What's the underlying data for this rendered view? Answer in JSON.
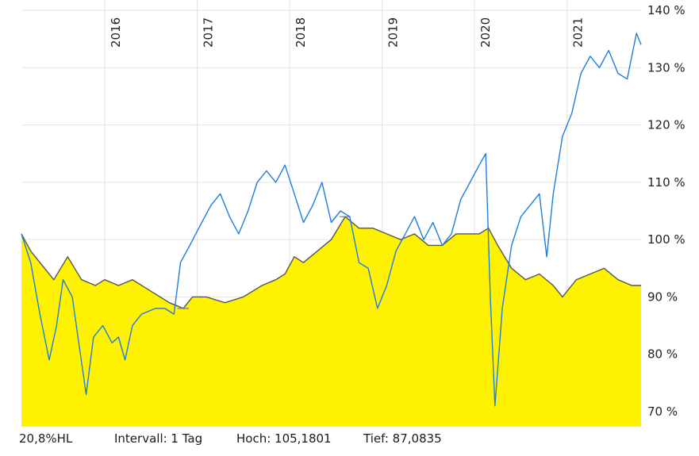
{
  "chart_data": {
    "type": "area",
    "x_ticks": [
      "2016",
      "2017",
      "2018",
      "2019",
      "2020",
      "2021"
    ],
    "y_ticks": [
      "70 %",
      "80 %",
      "90 %",
      "100 %",
      "110 %",
      "120 %",
      "130 %",
      "140 %"
    ],
    "ylim": [
      68,
      140
    ],
    "xlim": [
      2015.1,
      2021.8
    ],
    "grid": true,
    "series": [
      {
        "style": "area",
        "fill": "#fff200",
        "stroke": "#555555",
        "points": [
          [
            2015.1,
            101
          ],
          [
            2015.2,
            98
          ],
          [
            2015.3,
            96
          ],
          [
            2015.45,
            93
          ],
          [
            2015.6,
            97
          ],
          [
            2015.75,
            93
          ],
          [
            2015.9,
            92
          ],
          [
            2016.0,
            93
          ],
          [
            2016.15,
            92
          ],
          [
            2016.3,
            93
          ],
          [
            2016.5,
            91
          ],
          [
            2016.7,
            89
          ],
          [
            2016.85,
            88
          ],
          [
            2016.95,
            90
          ],
          [
            2017.1,
            90
          ],
          [
            2017.3,
            89
          ],
          [
            2017.5,
            90
          ],
          [
            2017.7,
            92
          ],
          [
            2017.85,
            93
          ],
          [
            2017.95,
            94
          ],
          [
            2018.05,
            97
          ],
          [
            2018.15,
            96
          ],
          [
            2018.3,
            98
          ],
          [
            2018.45,
            100
          ],
          [
            2018.6,
            104
          ],
          [
            2018.75,
            102
          ],
          [
            2018.9,
            102
          ],
          [
            2019.05,
            101
          ],
          [
            2019.2,
            100
          ],
          [
            2019.35,
            101
          ],
          [
            2019.5,
            99
          ],
          [
            2019.65,
            99
          ],
          [
            2019.8,
            101
          ],
          [
            2019.95,
            101
          ],
          [
            2020.05,
            101
          ],
          [
            2020.15,
            102
          ],
          [
            2020.25,
            99
          ],
          [
            2020.4,
            95
          ],
          [
            2020.55,
            93
          ],
          [
            2020.7,
            94
          ],
          [
            2020.85,
            92
          ],
          [
            2020.95,
            90
          ],
          [
            2021.1,
            93
          ],
          [
            2021.25,
            94
          ],
          [
            2021.4,
            95
          ],
          [
            2021.55,
            93
          ],
          [
            2021.7,
            92
          ],
          [
            2021.8,
            92
          ]
        ]
      },
      {
        "style": "line",
        "stroke": "#1f7de0",
        "points": [
          [
            2015.1,
            101
          ],
          [
            2015.2,
            96
          ],
          [
            2015.3,
            87
          ],
          [
            2015.4,
            79
          ],
          [
            2015.48,
            85
          ],
          [
            2015.55,
            93
          ],
          [
            2015.65,
            90
          ],
          [
            2015.72,
            82
          ],
          [
            2015.8,
            73
          ],
          [
            2015.88,
            83
          ],
          [
            2015.98,
            85
          ],
          [
            2016.08,
            82
          ],
          [
            2016.15,
            83
          ],
          [
            2016.22,
            79
          ],
          [
            2016.3,
            85
          ],
          [
            2016.4,
            87
          ],
          [
            2016.55,
            88
          ],
          [
            2016.65,
            88
          ],
          [
            2016.75,
            87
          ],
          [
            2016.82,
            96
          ],
          [
            2016.92,
            99
          ],
          [
            2017.05,
            103
          ],
          [
            2017.15,
            106
          ],
          [
            2017.25,
            108
          ],
          [
            2017.35,
            104
          ],
          [
            2017.45,
            101
          ],
          [
            2017.55,
            105
          ],
          [
            2017.65,
            110
          ],
          [
            2017.75,
            112
          ],
          [
            2017.85,
            110
          ],
          [
            2017.95,
            113
          ],
          [
            2018.05,
            108
          ],
          [
            2018.15,
            103
          ],
          [
            2018.25,
            106
          ],
          [
            2018.35,
            110
          ],
          [
            2018.45,
            103
          ],
          [
            2018.55,
            105
          ],
          [
            2018.65,
            104
          ],
          [
            2018.75,
            96
          ],
          [
            2018.85,
            95
          ],
          [
            2018.95,
            88
          ],
          [
            2019.05,
            92
          ],
          [
            2019.15,
            98
          ],
          [
            2019.25,
            101
          ],
          [
            2019.35,
            104
          ],
          [
            2019.45,
            100
          ],
          [
            2019.55,
            103
          ],
          [
            2019.65,
            99
          ],
          [
            2019.75,
            101
          ],
          [
            2019.85,
            107
          ],
          [
            2019.95,
            110
          ],
          [
            2020.05,
            113
          ],
          [
            2020.12,
            115
          ],
          [
            2020.17,
            90
          ],
          [
            2020.22,
            71
          ],
          [
            2020.3,
            88
          ],
          [
            2020.4,
            99
          ],
          [
            2020.5,
            104
          ],
          [
            2020.6,
            106
          ],
          [
            2020.7,
            108
          ],
          [
            2020.78,
            97
          ],
          [
            2020.85,
            108
          ],
          [
            2020.95,
            118
          ],
          [
            2021.05,
            122
          ],
          [
            2021.15,
            129
          ],
          [
            2021.25,
            132
          ],
          [
            2021.35,
            130
          ],
          [
            2021.45,
            133
          ],
          [
            2021.55,
            129
          ],
          [
            2021.65,
            128
          ],
          [
            2021.75,
            136
          ],
          [
            2021.8,
            134
          ]
        ]
      }
    ]
  },
  "footer": {
    "range_label": "20,8%HL",
    "interval_label": "Intervall: 1 Tag",
    "high_label": "Hoch: 105,1801",
    "low_label": "Tief: 87,0835"
  }
}
